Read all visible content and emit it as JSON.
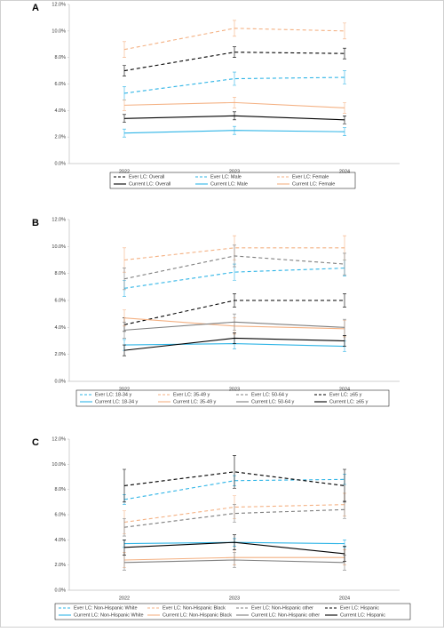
{
  "chart_data": [
    {
      "type": "line",
      "panel": "A",
      "categories": [
        "2022",
        "2023",
        "2024"
      ],
      "ylim": [
        0,
        12
      ],
      "yticks": [
        {
          "value": 0,
          "label": "0.0%"
        },
        {
          "value": 2,
          "label": "2.0%"
        },
        {
          "value": 4,
          "label": "4.0%"
        },
        {
          "value": 6,
          "label": "6.0%"
        },
        {
          "value": 8,
          "label": "8.0%"
        },
        {
          "value": 10,
          "label": "10.0%"
        },
        {
          "value": 12,
          "label": "12.0%"
        }
      ],
      "series": [
        {
          "name": "Ever LC: Overall",
          "color": "#000000",
          "dashed": true,
          "values": [
            7.0,
            8.4,
            8.3
          ],
          "errors": [
            0.4,
            0.4,
            0.4
          ]
        },
        {
          "name": "Ever LC: Male",
          "color": "#2eb4e6",
          "dashed": true,
          "values": [
            5.3,
            6.4,
            6.5
          ],
          "errors": [
            0.5,
            0.5,
            0.5
          ]
        },
        {
          "name": "Ever LC: Female",
          "color": "#f4b183",
          "dashed": true,
          "values": [
            8.6,
            10.2,
            10.0
          ],
          "errors": [
            0.6,
            0.6,
            0.6
          ]
        },
        {
          "name": "Current LC: Overall",
          "color": "#000000",
          "dashed": false,
          "values": [
            3.4,
            3.6,
            3.3
          ],
          "errors": [
            0.3,
            0.3,
            0.3
          ]
        },
        {
          "name": "Current LC: Male",
          "color": "#2eb4e6",
          "dashed": false,
          "values": [
            2.3,
            2.5,
            2.4
          ],
          "errors": [
            0.3,
            0.3,
            0.3
          ]
        },
        {
          "name": "Current LC: Female",
          "color": "#f4b183",
          "dashed": false,
          "values": [
            4.4,
            4.6,
            4.2
          ],
          "errors": [
            0.4,
            0.4,
            0.4
          ]
        }
      ]
    },
    {
      "type": "line",
      "panel": "B",
      "categories": [
        "2022",
        "2023",
        "2024"
      ],
      "ylim": [
        0,
        12
      ],
      "yticks": [
        {
          "value": 0,
          "label": "0.0%"
        },
        {
          "value": 2,
          "label": "2.0%"
        },
        {
          "value": 4,
          "label": "4.0%"
        },
        {
          "value": 6,
          "label": "6.0%"
        },
        {
          "value": 8,
          "label": "8.0%"
        },
        {
          "value": 10,
          "label": "10.0%"
        },
        {
          "value": 12,
          "label": "12.0%"
        }
      ],
      "series": [
        {
          "name": "Ever LC: 18-34 y",
          "color": "#2eb4e6",
          "dashed": true,
          "values": [
            6.9,
            8.1,
            8.4
          ],
          "errors": [
            0.6,
            0.6,
            0.6
          ]
        },
        {
          "name": "Ever LC: 35-49 y",
          "color": "#f4b183",
          "dashed": true,
          "values": [
            9.0,
            9.9,
            9.9
          ],
          "errors": [
            0.9,
            0.9,
            0.9
          ]
        },
        {
          "name": "Ever LC: 50-64 y",
          "color": "#7f7f7f",
          "dashed": true,
          "values": [
            7.6,
            9.3,
            8.7
          ],
          "errors": [
            0.8,
            0.8,
            0.8
          ]
        },
        {
          "name": "Ever LC: ≥65 y",
          "color": "#000000",
          "dashed": true,
          "values": [
            4.2,
            6.0,
            6.0
          ],
          "errors": [
            0.5,
            0.5,
            0.5
          ]
        },
        {
          "name": "Current LC: 18-34 y",
          "color": "#2eb4e6",
          "dashed": false,
          "values": [
            2.7,
            2.8,
            2.6
          ],
          "errors": [
            0.4,
            0.4,
            0.4
          ]
        },
        {
          "name": "Current LC: 35-49 y",
          "color": "#f4b183",
          "dashed": false,
          "values": [
            4.7,
            4.1,
            3.9
          ],
          "errors": [
            0.6,
            0.6,
            0.6
          ]
        },
        {
          "name": "Current LC: 50-64 y",
          "color": "#7f7f7f",
          "dashed": false,
          "values": [
            3.8,
            4.4,
            4.0
          ],
          "errors": [
            0.6,
            0.6,
            0.6
          ]
        },
        {
          "name": "Current LC: ≥65 y",
          "color": "#000000",
          "dashed": false,
          "values": [
            2.3,
            3.2,
            3.0
          ],
          "errors": [
            0.4,
            0.4,
            0.4
          ]
        }
      ]
    },
    {
      "type": "line",
      "panel": "C",
      "categories": [
        "2022",
        "2023",
        "2024"
      ],
      "ylim": [
        0,
        12
      ],
      "yticks": [
        {
          "value": 0,
          "label": "0.0%"
        },
        {
          "value": 2,
          "label": "2.0%"
        },
        {
          "value": 4,
          "label": "4.0%"
        },
        {
          "value": 6,
          "label": "6.0%"
        },
        {
          "value": 8,
          "label": "8.0%"
        },
        {
          "value": 10,
          "label": "10.0%"
        },
        {
          "value": 12,
          "label": "12.0%"
        }
      ],
      "series": [
        {
          "name": "Ever LC: Non-Hispanic White",
          "color": "#2eb4e6",
          "dashed": true,
          "values": [
            7.2,
            8.7,
            8.8
          ],
          "errors": [
            0.4,
            0.4,
            0.4
          ]
        },
        {
          "name": "Ever LC: Non-Hispanic Black",
          "color": "#f4b183",
          "dashed": true,
          "values": [
            5.4,
            6.6,
            6.8
          ],
          "errors": [
            0.9,
            0.9,
            0.9
          ]
        },
        {
          "name": "Ever LC: Non-Hispanic other",
          "color": "#7f7f7f",
          "dashed": true,
          "values": [
            5.0,
            6.1,
            6.4
          ],
          "errors": [
            0.7,
            0.7,
            0.7
          ]
        },
        {
          "name": "Ever LC: Hispanic",
          "color": "#000000",
          "dashed": true,
          "values": [
            8.3,
            9.4,
            8.3
          ],
          "errors": [
            1.3,
            1.3,
            1.3
          ]
        },
        {
          "name": "Current LC: Non-Hispanic White",
          "color": "#2eb4e6",
          "dashed": false,
          "values": [
            3.7,
            3.8,
            3.7
          ],
          "errors": [
            0.3,
            0.3,
            0.3
          ]
        },
        {
          "name": "Current LC: Non-Hispanic Black",
          "color": "#f4b183",
          "dashed": false,
          "values": [
            2.4,
            2.6,
            2.6
          ],
          "errors": [
            0.6,
            0.6,
            0.6
          ]
        },
        {
          "name": "Current LC: Non-Hispanic other",
          "color": "#7f7f7f",
          "dashed": false,
          "values": [
            2.2,
            2.4,
            2.2
          ],
          "errors": [
            0.6,
            0.6,
            0.6
          ]
        },
        {
          "name": "Current LC: Hispanic",
          "color": "#000000",
          "dashed": false,
          "values": [
            3.4,
            3.8,
            2.9
          ],
          "errors": [
            0.6,
            0.6,
            0.6
          ]
        }
      ]
    }
  ]
}
